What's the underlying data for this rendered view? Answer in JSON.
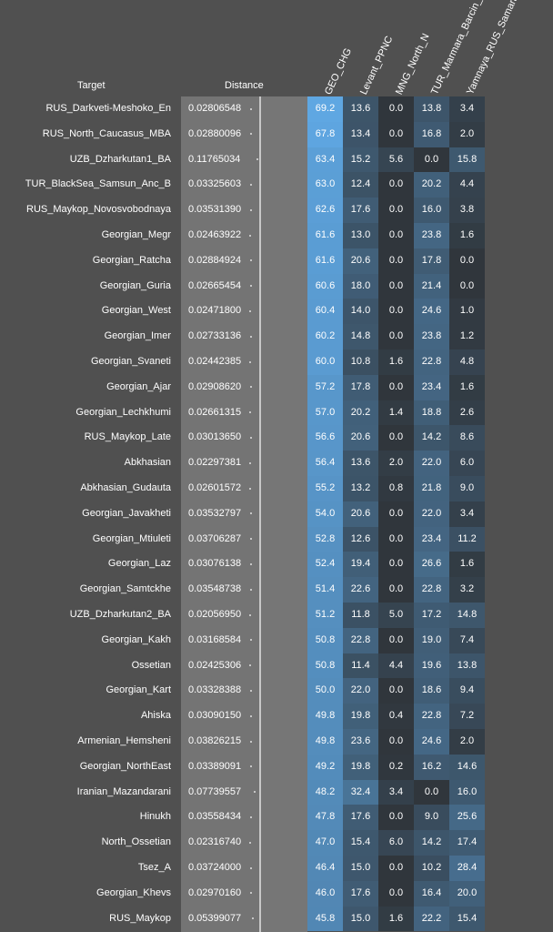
{
  "headers": {
    "target": "Target",
    "distance": "Distance",
    "columns": [
      "GEO_CHG",
      "Levant_PPNC",
      "MNG_North_N",
      "TUR_Marmara_Barcin_N",
      "Yamnaya_RUS_Samara"
    ]
  },
  "colors": {
    "background": "#505050",
    "distance_column": "#747474",
    "heat_low": "#303848",
    "heat_high": "#5fa8e4"
  },
  "chart_data": {
    "type": "table",
    "columns": [
      "Target",
      "Distance",
      "GEO_CHG",
      "Levant_PPNC",
      "MNG_North_N",
      "TUR_Marmara_Barcin_N",
      "Yamnaya_RUS_Samara"
    ],
    "rows": [
      {
        "target": "RUS_Darkveti-Meshoko_En",
        "distance": "0.02806548",
        "values": [
          "69.2",
          "13.6",
          "0.0",
          "13.8",
          "3.4"
        ]
      },
      {
        "target": "RUS_North_Caucasus_MBA",
        "distance": "0.02880096",
        "values": [
          "67.8",
          "13.4",
          "0.0",
          "16.8",
          "2.0"
        ]
      },
      {
        "target": "UZB_Dzharkutan1_BA",
        "distance": "0.11765034",
        "values": [
          "63.4",
          "15.2",
          "5.6",
          "0.0",
          "15.8"
        ]
      },
      {
        "target": "TUR_BlackSea_Samsun_Anc_B",
        "distance": "0.03325603",
        "values": [
          "63.0",
          "12.4",
          "0.0",
          "20.2",
          "4.4"
        ]
      },
      {
        "target": "RUS_Maykop_Novosvobodnaya",
        "distance": "0.03531390",
        "values": [
          "62.6",
          "17.6",
          "0.0",
          "16.0",
          "3.8"
        ]
      },
      {
        "target": "Georgian_Megr",
        "distance": "0.02463922",
        "values": [
          "61.6",
          "13.0",
          "0.0",
          "23.8",
          "1.6"
        ]
      },
      {
        "target": "Georgian_Ratcha",
        "distance": "0.02884924",
        "values": [
          "61.6",
          "20.6",
          "0.0",
          "17.8",
          "0.0"
        ]
      },
      {
        "target": "Georgian_Guria",
        "distance": "0.02665454",
        "values": [
          "60.6",
          "18.0",
          "0.0",
          "21.4",
          "0.0"
        ]
      },
      {
        "target": "Georgian_West",
        "distance": "0.02471800",
        "values": [
          "60.4",
          "14.0",
          "0.0",
          "24.6",
          "1.0"
        ]
      },
      {
        "target": "Georgian_Imer",
        "distance": "0.02733136",
        "values": [
          "60.2",
          "14.8",
          "0.0",
          "23.8",
          "1.2"
        ]
      },
      {
        "target": "Georgian_Svaneti",
        "distance": "0.02442385",
        "values": [
          "60.0",
          "10.8",
          "1.6",
          "22.8",
          "4.8"
        ]
      },
      {
        "target": "Georgian_Ajar",
        "distance": "0.02908620",
        "values": [
          "57.2",
          "17.8",
          "0.0",
          "23.4",
          "1.6"
        ]
      },
      {
        "target": "Georgian_Lechkhumi",
        "distance": "0.02661315",
        "values": [
          "57.0",
          "20.2",
          "1.4",
          "18.8",
          "2.6"
        ]
      },
      {
        "target": "RUS_Maykop_Late",
        "distance": "0.03013650",
        "values": [
          "56.6",
          "20.6",
          "0.0",
          "14.2",
          "8.6"
        ]
      },
      {
        "target": "Abkhasian",
        "distance": "0.02297381",
        "values": [
          "56.4",
          "13.6",
          "2.0",
          "22.0",
          "6.0"
        ]
      },
      {
        "target": "Abkhasian_Gudauta",
        "distance": "0.02601572",
        "values": [
          "55.2",
          "13.2",
          "0.8",
          "21.8",
          "9.0"
        ]
      },
      {
        "target": "Georgian_Javakheti",
        "distance": "0.03532797",
        "values": [
          "54.0",
          "20.6",
          "0.0",
          "22.0",
          "3.4"
        ]
      },
      {
        "target": "Georgian_Mtiuleti",
        "distance": "0.03706287",
        "values": [
          "52.8",
          "12.6",
          "0.0",
          "23.4",
          "11.2"
        ]
      },
      {
        "target": "Georgian_Laz",
        "distance": "0.03076138",
        "values": [
          "52.4",
          "19.4",
          "0.0",
          "26.6",
          "1.6"
        ]
      },
      {
        "target": "Georgian_Samtckhe",
        "distance": "0.03548738",
        "values": [
          "51.4",
          "22.6",
          "0.0",
          "22.8",
          "3.2"
        ]
      },
      {
        "target": "UZB_Dzharkutan2_BA",
        "distance": "0.02056950",
        "values": [
          "51.2",
          "11.8",
          "5.0",
          "17.2",
          "14.8"
        ]
      },
      {
        "target": "Georgian_Kakh",
        "distance": "0.03168584",
        "values": [
          "50.8",
          "22.8",
          "0.0",
          "19.0",
          "7.4"
        ]
      },
      {
        "target": "Ossetian",
        "distance": "0.02425306",
        "values": [
          "50.8",
          "11.4",
          "4.4",
          "19.6",
          "13.8"
        ]
      },
      {
        "target": "Georgian_Kart",
        "distance": "0.03328388",
        "values": [
          "50.0",
          "22.0",
          "0.0",
          "18.6",
          "9.4"
        ]
      },
      {
        "target": "Ahiska",
        "distance": "0.03090150",
        "values": [
          "49.8",
          "19.8",
          "0.4",
          "22.8",
          "7.2"
        ]
      },
      {
        "target": "Armenian_Hemsheni",
        "distance": "0.03826215",
        "values": [
          "49.8",
          "23.6",
          "0.0",
          "24.6",
          "2.0"
        ]
      },
      {
        "target": "Georgian_NorthEast",
        "distance": "0.03389091",
        "values": [
          "49.2",
          "19.8",
          "0.2",
          "16.2",
          "14.6"
        ]
      },
      {
        "target": "Iranian_Mazandarani",
        "distance": "0.07739557",
        "values": [
          "48.2",
          "32.4",
          "3.4",
          "0.0",
          "16.0"
        ]
      },
      {
        "target": "Hinukh",
        "distance": "0.03558434",
        "values": [
          "47.8",
          "17.6",
          "0.0",
          "9.0",
          "25.6"
        ]
      },
      {
        "target": "North_Ossetian",
        "distance": "0.02316740",
        "values": [
          "47.0",
          "15.4",
          "6.0",
          "14.2",
          "17.4"
        ]
      },
      {
        "target": "Tsez_A",
        "distance": "0.03724000",
        "values": [
          "46.4",
          "15.0",
          "0.0",
          "10.2",
          "28.4"
        ]
      },
      {
        "target": "Georgian_Khevs",
        "distance": "0.02970160",
        "values": [
          "46.0",
          "17.6",
          "0.0",
          "16.4",
          "20.0"
        ]
      },
      {
        "target": "RUS_Maykop",
        "distance": "0.05399077",
        "values": [
          "45.8",
          "15.0",
          "1.6",
          "22.2",
          "15.4"
        ]
      }
    ]
  }
}
